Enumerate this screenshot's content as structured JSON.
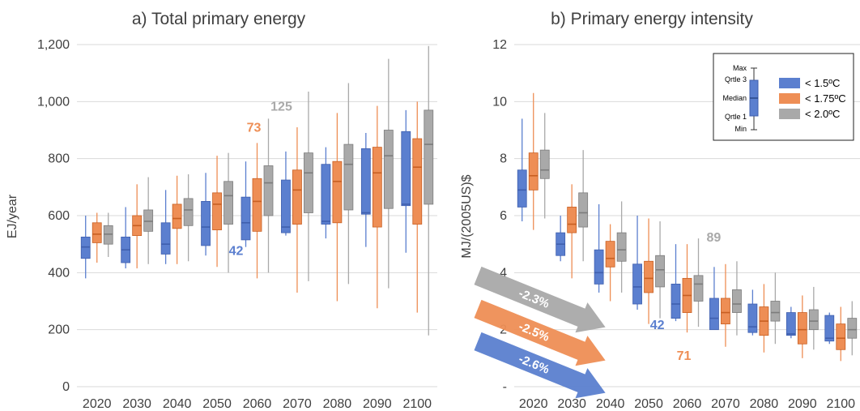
{
  "colors": {
    "s15": "#5b7fcf",
    "s175": "#ee8e55",
    "s20": "#a9a9a9",
    "s15_dark": "#3f5fae",
    "s175_dark": "#c85f22",
    "s20_dark": "#7c7c7c",
    "grid": "#d9d9d9",
    "text": "#404040"
  },
  "legend": {
    "items": [
      "< 1.5ºC",
      "< 1.75ºC",
      "< 2.0ºC"
    ],
    "schematic": {
      "max": "Max",
      "q3": "Qrtle 3",
      "median": "Median",
      "q1": "Qrtle 1",
      "min": "Min"
    }
  },
  "chart_data": [
    {
      "type": "box",
      "title": "a) Total primary energy",
      "ylabel": "EJ/year",
      "xlabel": "",
      "ylim": [
        0,
        1200
      ],
      "yticks": [
        0,
        200,
        400,
        600,
        800,
        1000,
        1200
      ],
      "ytick_labels": [
        "0",
        "200",
        "400",
        "600",
        "800",
        "1,000",
        "1,200"
      ],
      "categories": [
        "2020",
        "2030",
        "2040",
        "2050",
        "2060",
        "2070",
        "2080",
        "2090",
        "2100"
      ],
      "grid": true,
      "series": [
        {
          "name": "< 1.5ºC",
          "boxes": [
            {
              "min": 380,
              "q1": 450,
              "median": 490,
              "q3": 525,
              "max": 600
            },
            {
              "min": 415,
              "q1": 435,
              "median": 480,
              "q3": 525,
              "max": 630
            },
            {
              "min": 430,
              "q1": 465,
              "median": 500,
              "q3": 575,
              "max": 690
            },
            {
              "min": 460,
              "q1": 495,
              "median": 560,
              "q3": 650,
              "max": 750
            },
            {
              "min": 490,
              "q1": 515,
              "median": 575,
              "q3": 665,
              "max": 790
            },
            {
              "min": 530,
              "q1": 540,
              "median": 560,
              "q3": 725,
              "max": 825
            },
            {
              "min": 520,
              "q1": 570,
              "median": 580,
              "q3": 780,
              "max": 840
            },
            {
              "min": 490,
              "q1": 605,
              "median": 610,
              "q3": 835,
              "max": 890
            },
            {
              "min": 470,
              "q1": 635,
              "median": 640,
              "q3": 895,
              "max": 970
            }
          ]
        },
        {
          "name": "< 1.75ºC",
          "boxes": [
            {
              "min": 435,
              "q1": 505,
              "median": 535,
              "q3": 575,
              "max": 610
            },
            {
              "min": 415,
              "q1": 530,
              "median": 565,
              "q3": 600,
              "max": 710
            },
            {
              "min": 430,
              "q1": 555,
              "median": 590,
              "q3": 640,
              "max": 740
            },
            {
              "min": 420,
              "q1": 550,
              "median": 640,
              "q3": 680,
              "max": 810
            },
            {
              "min": 380,
              "q1": 545,
              "median": 650,
              "q3": 730,
              "max": 855
            },
            {
              "min": 330,
              "q1": 570,
              "median": 690,
              "q3": 760,
              "max": 910
            },
            {
              "min": 300,
              "q1": 575,
              "median": 720,
              "q3": 790,
              "max": 960
            },
            {
              "min": 275,
              "q1": 560,
              "median": 750,
              "q3": 840,
              "max": 985
            },
            {
              "min": 260,
              "q1": 570,
              "median": 770,
              "q3": 870,
              "max": 1000
            }
          ]
        },
        {
          "name": "< 2.0ºC",
          "boxes": [
            {
              "min": 455,
              "q1": 500,
              "median": 535,
              "q3": 565,
              "max": 610
            },
            {
              "min": 430,
              "q1": 545,
              "median": 580,
              "q3": 620,
              "max": 735
            },
            {
              "min": 440,
              "q1": 565,
              "median": 620,
              "q3": 660,
              "max": 745
            },
            {
              "min": 400,
              "q1": 570,
              "median": 670,
              "q3": 720,
              "max": 820
            },
            {
              "min": 400,
              "q1": 600,
              "median": 715,
              "q3": 775,
              "max": 940
            },
            {
              "min": 370,
              "q1": 610,
              "median": 750,
              "q3": 820,
              "max": 1035
            },
            {
              "min": 360,
              "q1": 620,
              "median": 780,
              "q3": 850,
              "max": 1065
            },
            {
              "min": 345,
              "q1": 625,
              "median": 810,
              "q3": 900,
              "max": 1150
            },
            {
              "min": 180,
              "q1": 640,
              "median": 850,
              "q3": 970,
              "max": 1195
            }
          ]
        }
      ],
      "annotations": [
        {
          "text": "125",
          "series": "< 2.0ºC",
          "category": "2060"
        },
        {
          "text": "73",
          "series": "< 1.75ºC",
          "category": "2060"
        },
        {
          "text": "42",
          "series": "< 1.5ºC",
          "category": "2060"
        }
      ]
    },
    {
      "type": "box",
      "title": "b) Primary energy intensity",
      "ylabel": "MJ/(2005US)$",
      "xlabel": "",
      "ylim": [
        0,
        12
      ],
      "yticks": [
        0,
        2,
        4,
        6,
        8,
        10,
        12
      ],
      "ytick_labels": [
        "-",
        "2",
        "4",
        "6",
        "8",
        "10",
        "12"
      ],
      "categories": [
        "2020",
        "2030",
        "2040",
        "2050",
        "2060",
        "2070",
        "2080",
        "2090",
        "2100"
      ],
      "grid": true,
      "series": [
        {
          "name": "< 1.5ºC",
          "boxes": [
            {
              "min": 5.8,
              "q1": 6.3,
              "median": 6.9,
              "q3": 7.6,
              "max": 9.4
            },
            {
              "min": 4.4,
              "q1": 4.6,
              "median": 5.0,
              "q3": 5.4,
              "max": 6.0
            },
            {
              "min": 3.3,
              "q1": 3.6,
              "median": 4.0,
              "q3": 4.8,
              "max": 6.4
            },
            {
              "min": 2.7,
              "q1": 2.9,
              "median": 3.5,
              "q3": 4.3,
              "max": 6.0
            },
            {
              "min": 2.3,
              "q1": 2.4,
              "median": 2.9,
              "q3": 3.6,
              "max": 5.0
            },
            {
              "min": 2.0,
              "q1": 2.0,
              "median": 2.4,
              "q3": 3.1,
              "max": 4.2
            },
            {
              "min": 1.8,
              "q1": 1.9,
              "median": 2.1,
              "q3": 2.9,
              "max": 3.4
            },
            {
              "min": 1.7,
              "q1": 1.8,
              "median": 1.85,
              "q3": 2.6,
              "max": 2.8
            },
            {
              "min": 1.5,
              "q1": 1.6,
              "median": 1.7,
              "q3": 2.5,
              "max": 2.6
            }
          ]
        },
        {
          "name": "< 1.75ºC",
          "boxes": [
            {
              "min": 5.5,
              "q1": 6.9,
              "median": 7.4,
              "q3": 8.2,
              "max": 10.3
            },
            {
              "min": 3.8,
              "q1": 5.4,
              "median": 5.7,
              "q3": 6.3,
              "max": 7.1
            },
            {
              "min": 3.0,
              "q1": 4.2,
              "median": 4.5,
              "q3": 5.1,
              "max": 5.7
            },
            {
              "min": 2.2,
              "q1": 3.3,
              "median": 3.8,
              "q3": 4.4,
              "max": 5.9
            },
            {
              "min": 1.9,
              "q1": 2.6,
              "median": 3.2,
              "q3": 3.8,
              "max": 5.0
            },
            {
              "min": 1.4,
              "q1": 2.2,
              "median": 2.6,
              "q3": 3.1,
              "max": 4.3
            },
            {
              "min": 1.2,
              "q1": 1.8,
              "median": 2.3,
              "q3": 2.8,
              "max": 3.6
            },
            {
              "min": 1.0,
              "q1": 1.5,
              "median": 2.0,
              "q3": 2.6,
              "max": 3.2
            },
            {
              "min": 0.9,
              "q1": 1.3,
              "median": 1.7,
              "q3": 2.2,
              "max": 2.8
            }
          ]
        },
        {
          "name": "< 2.0ºC",
          "boxes": [
            {
              "min": 5.9,
              "q1": 7.3,
              "median": 7.6,
              "q3": 8.3,
              "max": 9.6
            },
            {
              "min": 4.4,
              "q1": 5.6,
              "median": 6.1,
              "q3": 6.8,
              "max": 8.3
            },
            {
              "min": 3.3,
              "q1": 4.4,
              "median": 4.8,
              "q3": 5.4,
              "max": 6.5
            },
            {
              "min": 2.4,
              "q1": 3.5,
              "median": 4.1,
              "q3": 4.6,
              "max": 5.8
            },
            {
              "min": 2.1,
              "q1": 3.0,
              "median": 3.6,
              "q3": 3.9,
              "max": 5.2
            },
            {
              "min": 1.8,
              "q1": 2.6,
              "median": 2.9,
              "q3": 3.4,
              "max": 4.4
            },
            {
              "min": 1.5,
              "q1": 2.3,
              "median": 2.6,
              "q3": 3.0,
              "max": 4.0
            },
            {
              "min": 1.3,
              "q1": 2.0,
              "median": 2.3,
              "q3": 2.7,
              "max": 3.5
            },
            {
              "min": 1.1,
              "q1": 1.7,
              "median": 2.0,
              "q3": 2.4,
              "max": 3.0
            }
          ]
        }
      ],
      "annotations": [
        {
          "text": "89",
          "series": "< 2.0ºC",
          "category": "2060"
        },
        {
          "text": "42",
          "series": "< 1.5ºC",
          "category": "2060"
        },
        {
          "text": "71",
          "series": "< 1.75ºC",
          "category": "2060"
        }
      ],
      "rate_arrows": [
        {
          "text": "-2.3%",
          "series": "< 2.0ºC"
        },
        {
          "text": "-2.5%",
          "series": "< 1.75ºC"
        },
        {
          "text": "-2.6%",
          "series": "< 1.5ºC"
        }
      ]
    }
  ]
}
